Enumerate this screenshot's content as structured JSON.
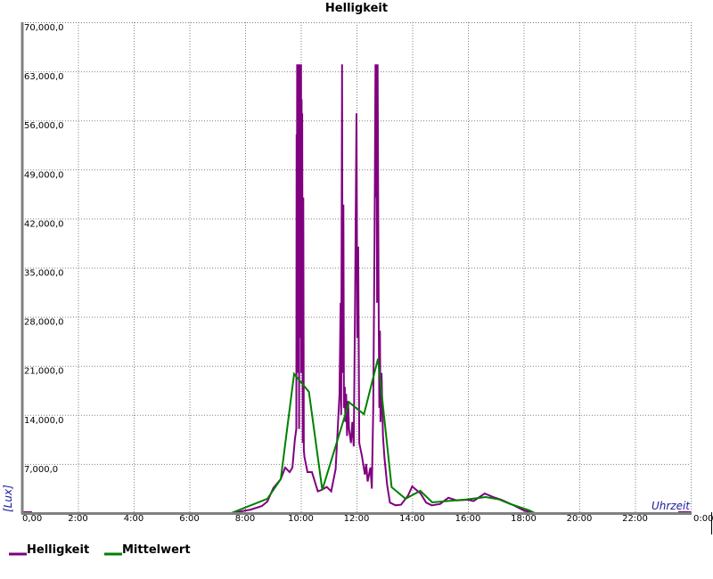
{
  "chart_data": {
    "type": "line",
    "title": "Helligkeit",
    "xlabel": "Uhrzeit",
    "ylabel": "[Lux]",
    "xlim": [
      0,
      24
    ],
    "ylim": [
      0,
      70000
    ],
    "x_unit": "hours",
    "grid": true,
    "legend_placement": "bottom-left",
    "x_ticks": [
      {
        "value": 0,
        "label": "0,00"
      },
      {
        "value": 2,
        "label": "2:00"
      },
      {
        "value": 4,
        "label": "4:00"
      },
      {
        "value": 6,
        "label": "6:00"
      },
      {
        "value": 8,
        "label": "8:00"
      },
      {
        "value": 10,
        "label": "10:00"
      },
      {
        "value": 12,
        "label": "12:00"
      },
      {
        "value": 14,
        "label": "14:00"
      },
      {
        "value": 16,
        "label": "16:00"
      },
      {
        "value": 18,
        "label": "18:00"
      },
      {
        "value": 20,
        "label": "20:00"
      },
      {
        "value": 22,
        "label": "22:00"
      },
      {
        "value": 24,
        "label": "0:00"
      }
    ],
    "y_ticks": [
      {
        "value": 0,
        "label": "0,0"
      },
      {
        "value": 7000,
        "label": "7,000,0"
      },
      {
        "value": 14000,
        "label": "14,000,0"
      },
      {
        "value": 21000,
        "label": "21,000,0"
      },
      {
        "value": 28000,
        "label": "28,000,0"
      },
      {
        "value": 35000,
        "label": "35,000,0"
      },
      {
        "value": 42000,
        "label": "42,000,0"
      },
      {
        "value": 49000,
        "label": "49,000,0"
      },
      {
        "value": 56000,
        "label": "56,000,0"
      },
      {
        "value": 63000,
        "label": "63,000,0"
      },
      {
        "value": 70000,
        "label": "70,000,0"
      }
    ],
    "series": [
      {
        "name": "Helligkeit",
        "color": "#800080",
        "points": [
          [
            0,
            0
          ],
          [
            7.5,
            0
          ],
          [
            7.8,
            200
          ],
          [
            8.2,
            500
          ],
          [
            8.6,
            1000
          ],
          [
            8.8,
            1650
          ],
          [
            9.01,
            3560
          ],
          [
            9.28,
            4840
          ],
          [
            9.44,
            6490
          ],
          [
            9.6,
            5850
          ],
          [
            9.7,
            6490
          ],
          [
            9.79,
            10560
          ],
          [
            9.84,
            12000
          ],
          [
            9.85,
            54000
          ],
          [
            9.86,
            30000
          ],
          [
            9.87,
            64000
          ],
          [
            9.88,
            40000
          ],
          [
            9.89,
            64000
          ],
          [
            9.9,
            20000
          ],
          [
            9.91,
            64000
          ],
          [
            9.92,
            46000
          ],
          [
            9.93,
            64000
          ],
          [
            9.94,
            12000
          ],
          [
            9.95,
            64000
          ],
          [
            9.96,
            30000
          ],
          [
            9.97,
            64000
          ],
          [
            9.98,
            25000
          ],
          [
            9.99,
            64000
          ],
          [
            10.0,
            50000
          ],
          [
            10.01,
            64000
          ],
          [
            10.02,
            20000
          ],
          [
            10.03,
            59000
          ],
          [
            10.04,
            44000
          ],
          [
            10.05,
            57000
          ],
          [
            10.07,
            10000
          ],
          [
            10.09,
            45000
          ],
          [
            10.11,
            9000
          ],
          [
            10.13,
            8000
          ],
          [
            10.24,
            5850
          ],
          [
            10.4,
            5850
          ],
          [
            10.61,
            3100
          ],
          [
            10.75,
            3300
          ],
          [
            10.93,
            3730
          ],
          [
            11.09,
            3100
          ],
          [
            11.25,
            6270
          ],
          [
            11.39,
            16900
          ],
          [
            11.43,
            30000
          ],
          [
            11.45,
            14000
          ],
          [
            11.48,
            64000
          ],
          [
            11.5,
            20000
          ],
          [
            11.53,
            44000
          ],
          [
            11.55,
            15000
          ],
          [
            11.58,
            18000
          ],
          [
            11.6,
            13000
          ],
          [
            11.63,
            17000
          ],
          [
            11.66,
            11000
          ],
          [
            11.7,
            16000
          ],
          [
            11.73,
            12000
          ],
          [
            11.8,
            10000
          ],
          [
            11.85,
            13000
          ],
          [
            11.9,
            9500
          ],
          [
            11.95,
            30000
          ],
          [
            12.0,
            57000
          ],
          [
            12.03,
            25000
          ],
          [
            12.06,
            38000
          ],
          [
            12.1,
            10000
          ],
          [
            12.2,
            8000
          ],
          [
            12.3,
            5500
          ],
          [
            12.35,
            7000
          ],
          [
            12.4,
            4500
          ],
          [
            12.5,
            6500
          ],
          [
            12.55,
            3500
          ],
          [
            12.6,
            15000
          ],
          [
            12.65,
            40000
          ],
          [
            12.68,
            64000
          ],
          [
            12.7,
            45000
          ],
          [
            12.72,
            64000
          ],
          [
            12.74,
            30000
          ],
          [
            12.76,
            64000
          ],
          [
            12.78,
            42000
          ],
          [
            12.8,
            26000
          ],
          [
            12.82,
            15000
          ],
          [
            12.84,
            26000
          ],
          [
            12.86,
            13000
          ],
          [
            12.9,
            20000
          ],
          [
            12.95,
            11000
          ],
          [
            13.0,
            8000
          ],
          [
            13.1,
            4000
          ],
          [
            13.2,
            1500
          ],
          [
            13.4,
            1100
          ],
          [
            13.6,
            1200
          ],
          [
            13.85,
            2500
          ],
          [
            14.0,
            3800
          ],
          [
            14.3,
            2800
          ],
          [
            14.5,
            1500
          ],
          [
            14.7,
            1100
          ],
          [
            15.0,
            1300
          ],
          [
            15.3,
            2200
          ],
          [
            15.6,
            1800
          ],
          [
            16.0,
            1900
          ],
          [
            16.2,
            1700
          ],
          [
            16.6,
            2800
          ],
          [
            16.9,
            2300
          ],
          [
            17.2,
            1900
          ],
          [
            17.6,
            1200
          ],
          [
            18.0,
            400
          ],
          [
            18.3,
            0
          ],
          [
            24,
            0
          ]
        ]
      },
      {
        "name": "Mittelwert",
        "color": "#008000",
        "points": [
          [
            0,
            0
          ],
          [
            7.5,
            0
          ],
          [
            8.8,
            2040
          ],
          [
            9.28,
            4840
          ],
          [
            9.76,
            19850
          ],
          [
            10.29,
            17300
          ],
          [
            10.77,
            3300
          ],
          [
            11.73,
            15800
          ],
          [
            12.27,
            14100
          ],
          [
            12.77,
            22000
          ],
          [
            13.26,
            3700
          ],
          [
            13.76,
            2040
          ],
          [
            14.29,
            3180
          ],
          [
            14.72,
            1530
          ],
          [
            15.2,
            1700
          ],
          [
            15.94,
            1950
          ],
          [
            16.64,
            2290
          ],
          [
            17.12,
            1950
          ],
          [
            17.54,
            1270
          ],
          [
            18.2,
            400
          ],
          [
            18.4,
            0
          ],
          [
            24,
            0
          ]
        ]
      }
    ]
  }
}
